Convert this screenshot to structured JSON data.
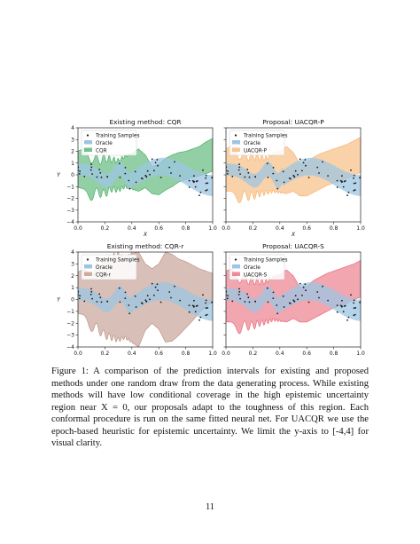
{
  "caption": "Figure 1: A comparison of the prediction intervals for existing and proposed methods under one random draw from the data generating process. While existing methods will have low conditional coverage in the high epistemic uncertainty region near X = 0, our proposals adapt to the toughness of this region. Each conformal procedure is run on the same fitted neural net. For UACQR we use the epoch-based heuristic for epistemic uncertainty. We limit the y-axis to [-4,4] for visual clarity.",
  "page_number": "11",
  "colors": {
    "oracle": "#9cc5e3",
    "cqr": "#3aa85a",
    "uacqr_p": "#f5ad62",
    "cqr_r": "#b88b7e",
    "uacqr_s": "#e65d6f",
    "dot": "#1a1a1a"
  },
  "chart_data": [
    {
      "type": "area",
      "title": "Existing method: CQR",
      "xlabel": "X",
      "ylabel": "Y",
      "xlim": [
        0,
        1
      ],
      "ylim": [
        -4,
        4
      ],
      "xticks": [
        "0.0",
        "0.2",
        "0.4",
        "0.6",
        "0.8",
        "1.0"
      ],
      "yticks": [
        "4",
        "3",
        "2",
        "1",
        "0",
        "−1",
        "−2",
        "−3",
        "−4"
      ],
      "legend": [
        "Training Samples",
        "Oracle",
        "CQR"
      ],
      "legend_position": "top-left",
      "method_key": "cqr",
      "x": [
        0.0,
        0.05,
        0.1,
        0.15,
        0.2,
        0.25,
        0.3,
        0.35,
        0.4,
        0.45,
        0.5,
        0.55,
        0.6,
        0.65,
        0.7,
        0.75,
        0.8,
        0.85,
        0.9,
        0.95,
        1.0
      ],
      "lower": [
        -1.6,
        -1.8,
        -1.7,
        -1.5,
        -1.6,
        -1.2,
        -1.3,
        -1.0,
        -1.2,
        -1.4,
        -1.1,
        -1.6,
        -1.7,
        -1.3,
        -1.0,
        -0.6,
        -0.4,
        -0.2,
        -0.1,
        0.1,
        0.3
      ],
      "upper": [
        1.5,
        1.7,
        1.5,
        1.2,
        1.4,
        1.3,
        1.2,
        1.6,
        1.8,
        2.2,
        1.7,
        0.7,
        0.9,
        1.4,
        1.7,
        1.9,
        2.0,
        2.2,
        2.4,
        2.8,
        3.1
      ]
    },
    {
      "type": "area",
      "title": "Proposal: UACQR-P",
      "xlabel": "X",
      "ylabel": "",
      "xlim": [
        0,
        1
      ],
      "ylim": [
        -4,
        4
      ],
      "xticks": [
        "0.0",
        "0.2",
        "0.4",
        "0.6",
        "0.8",
        "1.0"
      ],
      "yticks": [],
      "legend": [
        "Training Samples",
        "Oracle",
        "UACQR-P"
      ],
      "legend_position": "top-left",
      "method_key": "uacqr_p",
      "x": [
        0.0,
        0.05,
        0.1,
        0.15,
        0.2,
        0.25,
        0.3,
        0.35,
        0.4,
        0.45,
        0.5,
        0.55,
        0.6,
        0.65,
        0.7,
        0.75,
        0.8,
        0.85,
        0.9,
        0.95,
        1.0
      ],
      "lower": [
        -1.9,
        -2.0,
        -1.9,
        -1.8,
        -1.8,
        -1.6,
        -1.5,
        -1.4,
        -1.5,
        -1.6,
        -1.4,
        -1.8,
        -1.8,
        -1.5,
        -1.2,
        -0.9,
        -0.7,
        -0.5,
        -0.3,
        0.0,
        0.2
      ],
      "upper": [
        1.7,
        1.9,
        1.8,
        1.6,
        1.6,
        1.5,
        1.4,
        1.8,
        2.0,
        2.4,
        1.9,
        0.9,
        1.0,
        1.5,
        1.8,
        2.0,
        2.2,
        2.4,
        2.6,
        2.9,
        3.2
      ]
    },
    {
      "type": "area",
      "title": "Existing method: CQR-r",
      "xlabel": "X",
      "ylabel": "Y",
      "xlim": [
        0,
        1
      ],
      "ylim": [
        -4,
        4
      ],
      "xticks": [
        "0.0",
        "0.2",
        "0.4",
        "0.6",
        "0.8",
        "1.0"
      ],
      "yticks": [
        "4",
        "3",
        "2",
        "1",
        "0",
        "−1",
        "−2",
        "−3",
        "−4"
      ],
      "legend": [
        "Training Samples",
        "Oracle",
        "CQR-r"
      ],
      "legend_position": "top-left",
      "method_key": "cqr_r",
      "x": [
        0.0,
        0.05,
        0.1,
        0.15,
        0.2,
        0.25,
        0.3,
        0.35,
        0.4,
        0.45,
        0.5,
        0.55,
        0.6,
        0.65,
        0.7,
        0.75,
        0.8,
        0.85,
        0.9,
        0.95,
        1.0
      ],
      "lower": [
        -1.7,
        -1.9,
        -2.2,
        -2.5,
        -3.0,
        -3.2,
        -3.4,
        -3.2,
        -3.6,
        -4.0,
        -2.6,
        -2.0,
        -2.5,
        -3.6,
        -3.5,
        -3.0,
        -2.4,
        -1.8,
        -1.1,
        -0.6,
        -0.2
      ],
      "upper": [
        1.8,
        2.0,
        2.3,
        2.7,
        3.2,
        3.6,
        3.8,
        3.5,
        3.9,
        4.0,
        3.0,
        2.6,
        3.0,
        4.0,
        3.8,
        3.4,
        3.2,
        2.9,
        2.6,
        2.4,
        2.2
      ]
    },
    {
      "type": "area",
      "title": "Proposal: UACQR-S",
      "xlabel": "X",
      "ylabel": "",
      "xlim": [
        0,
        1
      ],
      "ylim": [
        -4,
        4
      ],
      "xticks": [
        "0.0",
        "0.2",
        "0.4",
        "0.6",
        "0.8",
        "1.0"
      ],
      "yticks": [],
      "legend": [
        "Training Samples",
        "Oracle",
        "UACQR-S"
      ],
      "legend_position": "top-left",
      "method_key": "uacqr_s",
      "x": [
        0.0,
        0.05,
        0.1,
        0.15,
        0.2,
        0.25,
        0.3,
        0.35,
        0.4,
        0.45,
        0.5,
        0.55,
        0.6,
        0.65,
        0.7,
        0.75,
        0.8,
        0.85,
        0.9,
        0.95,
        1.0
      ],
      "lower": [
        -2.4,
        -2.5,
        -2.4,
        -2.2,
        -2.2,
        -2.0,
        -1.9,
        -1.7,
        -1.8,
        -1.9,
        -1.6,
        -1.9,
        -1.9,
        -1.6,
        -1.3,
        -1.0,
        -0.7,
        -0.5,
        -0.3,
        0.0,
        0.2
      ],
      "upper": [
        1.9,
        2.0,
        1.9,
        1.7,
        1.6,
        1.5,
        1.5,
        1.9,
        2.1,
        2.5,
        2.0,
        1.0,
        1.1,
        1.6,
        1.9,
        2.2,
        2.4,
        2.6,
        2.8,
        3.0,
        3.3
      ]
    }
  ]
}
